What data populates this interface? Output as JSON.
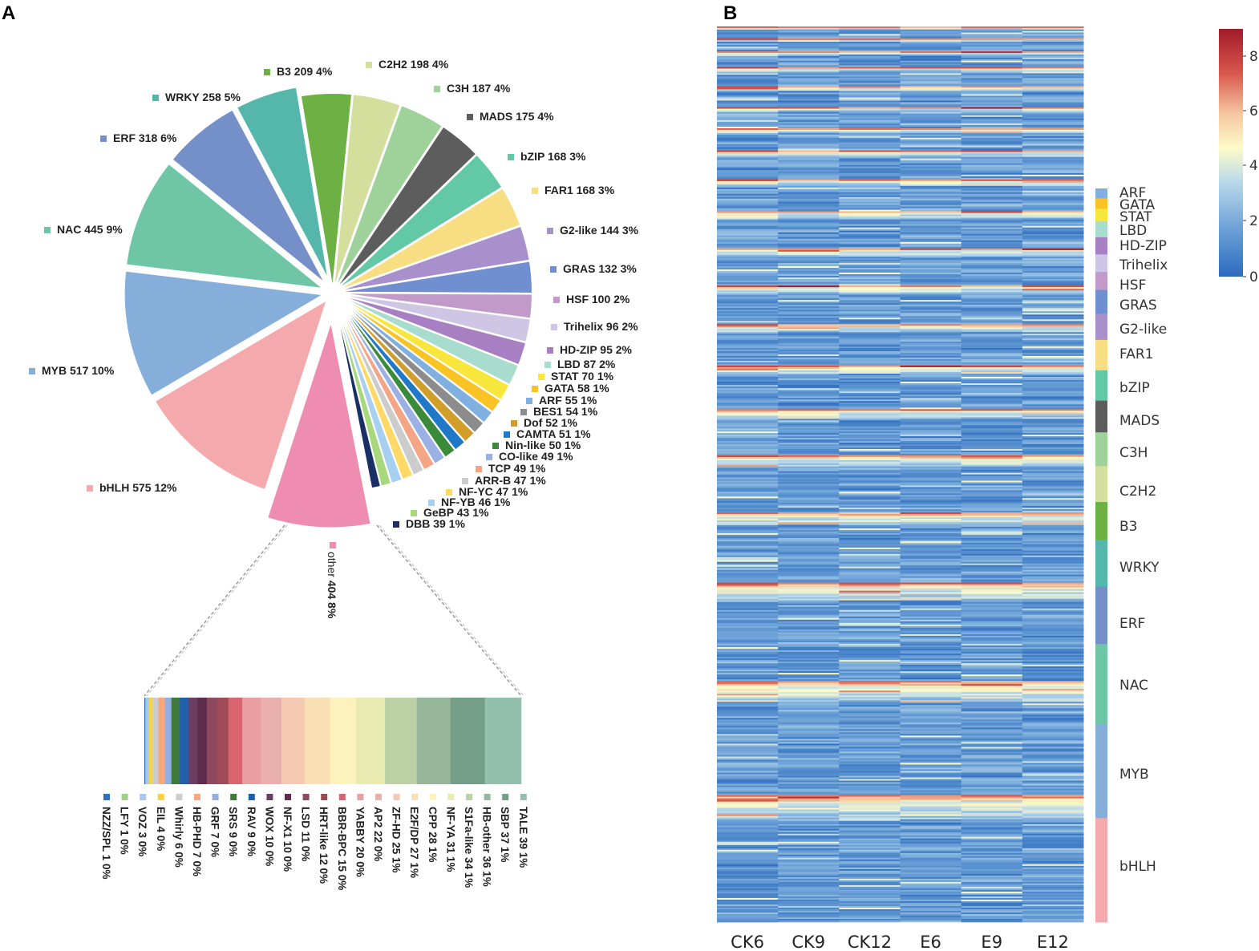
{
  "panels": {
    "a": "A",
    "b": "B"
  },
  "chart_data": [
    {
      "type": "pie",
      "panel": "A",
      "title": "",
      "slices": [
        {
          "label": "bHLH 575 12%",
          "value": 575,
          "color": "#f4a9ad"
        },
        {
          "label": "MYB 517 10%",
          "value": 517,
          "color": "#86aedb"
        },
        {
          "label": "NAC 445 9%",
          "value": 445,
          "color": "#6ec6a6"
        },
        {
          "label": "ERF 318 6%",
          "value": 318,
          "color": "#7590c9"
        },
        {
          "label": "WRKY 258 5%",
          "value": 258,
          "color": "#55b7ac"
        },
        {
          "label": "B3 209 4%",
          "value": 209,
          "color": "#6db044"
        },
        {
          "label": "C2H2 198 4%",
          "value": 198,
          "color": "#d4df9e"
        },
        {
          "label": "C3H 187 4%",
          "value": 187,
          "color": "#9ed29a"
        },
        {
          "label": "MADS 175 4%",
          "value": 175,
          "color": "#5d5d5d"
        },
        {
          "label": "bZIP 168 3%",
          "value": 168,
          "color": "#63c8a6"
        },
        {
          "label": "FAR1 168 3%",
          "value": 168,
          "color": "#f7de82"
        },
        {
          "label": "G2-like 144 3%",
          "value": 144,
          "color": "#a890cc"
        },
        {
          "label": "GRAS 132 3%",
          "value": 132,
          "color": "#6f8fd0"
        },
        {
          "label": "HSF 100 2%",
          "value": 100,
          "color": "#c29ac9"
        },
        {
          "label": "Trihelix 96 2%",
          "value": 96,
          "color": "#cfc6e6"
        },
        {
          "label": "HD-ZIP 95 2%",
          "value": 95,
          "color": "#a97fc3"
        },
        {
          "label": "LBD 87 2%",
          "value": 87,
          "color": "#a7dccf"
        },
        {
          "label": "STAT 70 1%",
          "value": 70,
          "color": "#f7e73d"
        },
        {
          "label": "GATA 58 1%",
          "value": 58,
          "color": "#f8c323"
        },
        {
          "label": "ARF 55 1%",
          "value": 55,
          "color": "#7fb0e0"
        },
        {
          "label": "BES1 54 1%",
          "value": 54,
          "color": "#8c8c8c"
        },
        {
          "label": "Dof 52 1%",
          "value": 52,
          "color": "#d19e2a"
        },
        {
          "label": "CAMTA 51 1%",
          "value": 51,
          "color": "#1f78c8"
        },
        {
          "label": "Nin-like 50 1%",
          "value": 50,
          "color": "#3a8a3a"
        },
        {
          "label": "CO-like  49 1%",
          "value": 49,
          "color": "#9cb1e3"
        },
        {
          "label": "TCP 49 1%",
          "value": 49,
          "color": "#f4a585"
        },
        {
          "label": "ARR-B 47 1%",
          "value": 47,
          "color": "#cccccc"
        },
        {
          "label": "NF-YC 47 1%",
          "value": 47,
          "color": "#ffd966"
        },
        {
          "label": "NF-YB 46 1%",
          "value": 46,
          "color": "#a6cff0"
        },
        {
          "label": "GeBP  43 1%",
          "value": 43,
          "color": "#a8d87c"
        },
        {
          "label": "DBB 39 1%",
          "value": 39,
          "color": "#1a2f66"
        },
        {
          "label": "other 404 8%",
          "value": 404,
          "color": "#ee8db0",
          "other_name": "other",
          "other_stat": "404 8%"
        }
      ]
    },
    {
      "type": "bar",
      "subtype": "stacked-breakdown",
      "panel": "A",
      "title": "",
      "categories": [
        "NZZ/SPL 1 0%",
        "LFY 1 0%",
        "VOZ 3 0%",
        "EIL 4 0%",
        "Whirly 6 0%",
        "HB-PHD 7 0%",
        "GRF 7 0%",
        "SRS 9 0%",
        "RAV 9 0%",
        "WOX 10 0%",
        "NF-X1 10 0%",
        "LSD 11 0%",
        "HRT-like 12 0%",
        "BBR-BPC 15 0%",
        "YABBY 20 0%",
        "AP2 22 0%",
        "ZF-HD 25 1%",
        "E2F/DP 27 1%",
        "CPP 28 1%",
        "NF-YA 31 1%",
        "S1Fa-like 34 1%",
        "HB-other 36 1%",
        "SBP 37 1%",
        "TALE 39 1%"
      ],
      "values": [
        1,
        1,
        3,
        4,
        6,
        7,
        7,
        9,
        9,
        10,
        10,
        11,
        12,
        15,
        20,
        22,
        25,
        27,
        28,
        31,
        34,
        36,
        37,
        39
      ],
      "colors": [
        "#2f6fbf",
        "#9fd08a",
        "#a6c8ee",
        "#f7d244",
        "#cccccc",
        "#f6a77e",
        "#93aee0",
        "#3f7a3a",
        "#1f5fab",
        "#6b3e63",
        "#5e2d4e",
        "#8e4a5e",
        "#9e4b55",
        "#d9636e",
        "#e99ea2",
        "#e9b0ae",
        "#f5c9b2",
        "#f8e0b4",
        "#fdf2bb",
        "#e8ebb0",
        "#bcd1a6",
        "#96b799",
        "#749e88",
        "#92c0ad"
      ]
    },
    {
      "type": "heatmap",
      "panel": "B",
      "title": "",
      "x_labels": [
        "CK6",
        "CK9",
        "CK12",
        "E6",
        "E9",
        "E12"
      ],
      "row_groups": [
        "ARF",
        "GATA",
        "STAT",
        "LBD",
        "HD-ZIP",
        "Trihelix",
        "HSF",
        "GRAS",
        "G2-like",
        "FAR1",
        "bZIP",
        "MADS",
        "C3H",
        "C2H2",
        "B3",
        "WRKY",
        "ERF",
        "NAC",
        "MYB",
        "bHLH"
      ],
      "group_counts": [
        55,
        58,
        70,
        87,
        95,
        96,
        100,
        132,
        144,
        168,
        168,
        175,
        187,
        198,
        209,
        258,
        318,
        445,
        517,
        575
      ],
      "group_colors": [
        "#7fb0e0",
        "#f8c323",
        "#f7e73d",
        "#a7dccf",
        "#a97fc3",
        "#cfc6e6",
        "#c29ac9",
        "#6f8fd0",
        "#a890cc",
        "#f7de82",
        "#63c8a6",
        "#5d5d5d",
        "#9ed29a",
        "#d4df9e",
        "#6db044",
        "#55b7ac",
        "#7590c9",
        "#6ec6a6",
        "#86aedb",
        "#f4a9ad"
      ],
      "colorbar": {
        "ticks": [
          "8",
          "6",
          "4",
          "2",
          "0"
        ],
        "range": [
          0,
          9
        ],
        "colors": [
          "#2c6bbd",
          "#6fa3d8",
          "#b9d9ea",
          "#fdfbc8",
          "#f6c6a0",
          "#d8584c",
          "#a11b2a"
        ]
      }
    }
  ]
}
